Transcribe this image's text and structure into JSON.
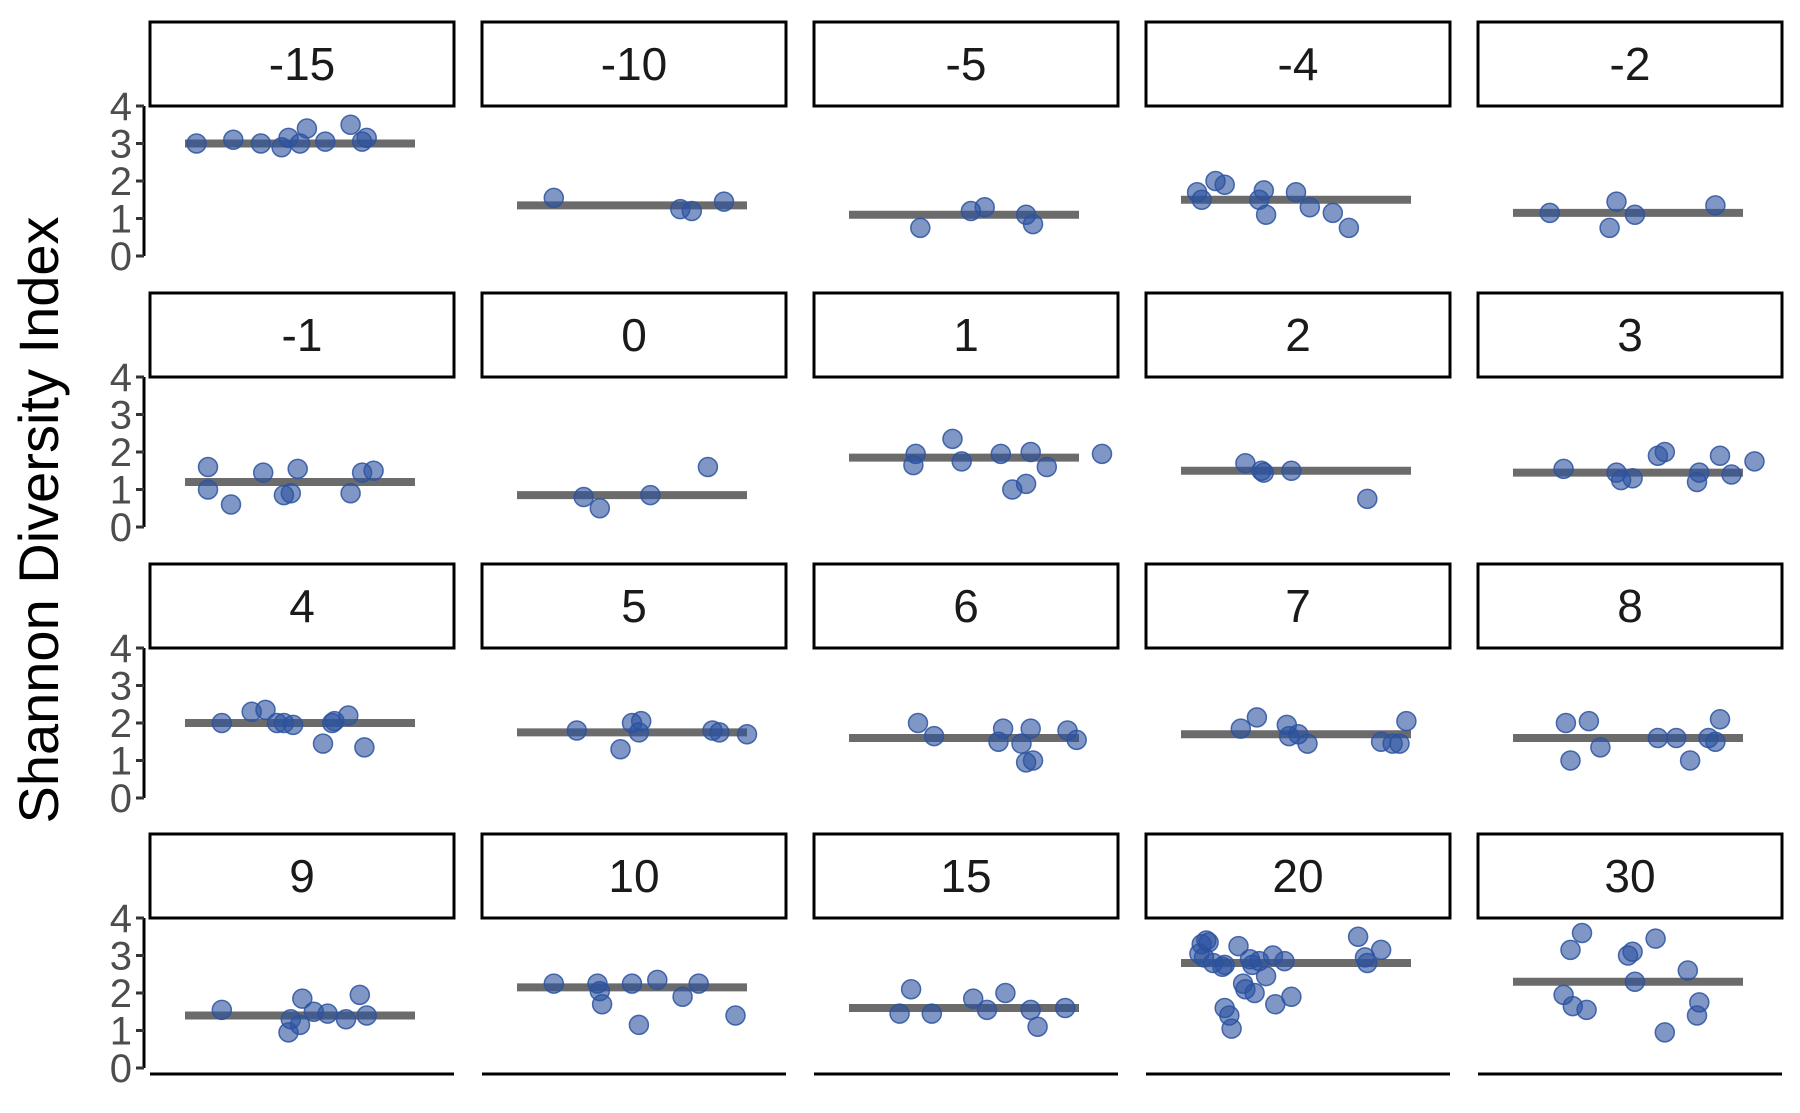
{
  "chart_data": {
    "type": "scatter",
    "ylabel": "Shannon Diversity Index",
    "xlabel": "",
    "title": "",
    "ylim": [
      0,
      4
    ],
    "yticks": [
      0,
      1,
      2,
      3,
      4
    ],
    "colors": {
      "point": "#2c52a0",
      "mean_line": "#6b6b6b",
      "border": "#000000"
    },
    "facets": [
      {
        "label": "-15",
        "mean": 3.0,
        "points": [
          [
            0.05,
            3.0
          ],
          [
            0.21,
            3.1
          ],
          [
            0.33,
            3.0
          ],
          [
            0.42,
            2.9
          ],
          [
            0.45,
            3.15
          ],
          [
            0.5,
            3.0
          ],
          [
            0.53,
            3.4
          ],
          [
            0.61,
            3.05
          ],
          [
            0.72,
            3.5
          ],
          [
            0.77,
            3.05
          ],
          [
            0.79,
            3.15
          ]
        ]
      },
      {
        "label": "-10",
        "mean": 1.35,
        "points": [
          [
            0.16,
            1.55
          ],
          [
            0.71,
            1.25
          ],
          [
            0.76,
            1.2
          ],
          [
            0.9,
            1.45
          ]
        ]
      },
      {
        "label": "-5",
        "mean": 1.1,
        "points": [
          [
            0.31,
            0.75
          ],
          [
            0.53,
            1.2
          ],
          [
            0.59,
            1.3
          ],
          [
            0.77,
            1.1
          ],
          [
            0.8,
            0.85
          ]
        ]
      },
      {
        "label": "-4",
        "mean": 1.5,
        "points": [
          [
            0.07,
            1.7
          ],
          [
            0.09,
            1.5
          ],
          [
            0.15,
            2.0
          ],
          [
            0.19,
            1.9
          ],
          [
            0.34,
            1.5
          ],
          [
            0.36,
            1.75
          ],
          [
            0.37,
            1.1
          ],
          [
            0.5,
            1.7
          ],
          [
            0.56,
            1.3
          ],
          [
            0.66,
            1.15
          ],
          [
            0.73,
            0.75
          ]
        ]
      },
      {
        "label": "-2",
        "mean": 1.15,
        "points": [
          [
            0.16,
            1.15
          ],
          [
            0.42,
            0.75
          ],
          [
            0.45,
            1.45
          ],
          [
            0.53,
            1.1
          ],
          [
            0.88,
            1.35
          ]
        ]
      },
      {
        "label": "-1",
        "mean": 1.2,
        "points": [
          [
            0.1,
            1.6
          ],
          [
            0.1,
            1.0
          ],
          [
            0.2,
            0.6
          ],
          [
            0.34,
            1.45
          ],
          [
            0.43,
            0.85
          ],
          [
            0.46,
            0.9
          ],
          [
            0.49,
            1.55
          ],
          [
            0.72,
            0.9
          ],
          [
            0.77,
            1.45
          ],
          [
            0.82,
            1.5
          ]
        ]
      },
      {
        "label": "0",
        "mean": 0.85,
        "points": [
          [
            0.29,
            0.8
          ],
          [
            0.36,
            0.5
          ],
          [
            0.58,
            0.85
          ],
          [
            0.83,
            1.6
          ]
        ]
      },
      {
        "label": "1",
        "mean": 1.85,
        "points": [
          [
            0.28,
            1.65
          ],
          [
            0.29,
            1.95
          ],
          [
            0.45,
            2.35
          ],
          [
            0.49,
            1.75
          ],
          [
            0.66,
            1.95
          ],
          [
            0.71,
            1.0
          ],
          [
            0.77,
            1.15
          ],
          [
            0.79,
            2.0
          ],
          [
            0.86,
            1.6
          ],
          [
            1.1,
            1.95
          ]
        ]
      },
      {
        "label": "2",
        "mean": 1.5,
        "points": [
          [
            0.28,
            1.7
          ],
          [
            0.35,
            1.5
          ],
          [
            0.36,
            1.45
          ],
          [
            0.48,
            1.5
          ],
          [
            0.81,
            0.75
          ]
        ]
      },
      {
        "label": "3",
        "mean": 1.45,
        "points": [
          [
            0.22,
            1.55
          ],
          [
            0.45,
            1.45
          ],
          [
            0.47,
            1.25
          ],
          [
            0.52,
            1.3
          ],
          [
            0.63,
            1.9
          ],
          [
            0.66,
            2.0
          ],
          [
            0.8,
            1.2
          ],
          [
            0.81,
            1.45
          ],
          [
            0.9,
            1.9
          ],
          [
            0.95,
            1.4
          ],
          [
            1.05,
            1.75
          ]
        ]
      },
      {
        "label": "4",
        "mean": 2.0,
        "points": [
          [
            0.16,
            2.0
          ],
          [
            0.29,
            2.3
          ],
          [
            0.35,
            2.35
          ],
          [
            0.4,
            2.0
          ],
          [
            0.43,
            2.0
          ],
          [
            0.47,
            1.95
          ],
          [
            0.6,
            1.45
          ],
          [
            0.64,
            2.0
          ],
          [
            0.65,
            2.05
          ],
          [
            0.71,
            2.2
          ],
          [
            0.78,
            1.35
          ]
        ]
      },
      {
        "label": "5",
        "mean": 1.75,
        "points": [
          [
            0.26,
            1.8
          ],
          [
            0.45,
            1.3
          ],
          [
            0.5,
            2.0
          ],
          [
            0.53,
            1.75
          ],
          [
            0.54,
            2.05
          ],
          [
            0.85,
            1.8
          ],
          [
            0.88,
            1.75
          ],
          [
            1.0,
            1.7
          ]
        ]
      },
      {
        "label": "6",
        "mean": 1.6,
        "points": [
          [
            0.3,
            2.0
          ],
          [
            0.37,
            1.65
          ],
          [
            0.65,
            1.5
          ],
          [
            0.67,
            1.85
          ],
          [
            0.75,
            1.45
          ],
          [
            0.77,
            0.95
          ],
          [
            0.79,
            1.85
          ],
          [
            0.8,
            1.0
          ],
          [
            0.95,
            1.8
          ],
          [
            0.99,
            1.55
          ]
        ]
      },
      {
        "label": "7",
        "mean": 1.7,
        "points": [
          [
            0.26,
            1.85
          ],
          [
            0.33,
            2.15
          ],
          [
            0.46,
            1.95
          ],
          [
            0.47,
            1.65
          ],
          [
            0.51,
            1.7
          ],
          [
            0.55,
            1.45
          ],
          [
            0.87,
            1.5
          ],
          [
            0.92,
            1.45
          ],
          [
            0.95,
            1.45
          ],
          [
            0.98,
            2.05
          ]
        ]
      },
      {
        "label": "8",
        "mean": 1.6,
        "points": [
          [
            0.23,
            2.0
          ],
          [
            0.25,
            1.0
          ],
          [
            0.33,
            2.05
          ],
          [
            0.38,
            1.35
          ],
          [
            0.63,
            1.6
          ],
          [
            0.71,
            1.6
          ],
          [
            0.77,
            1.0
          ],
          [
            0.85,
            1.6
          ],
          [
            0.88,
            1.5
          ],
          [
            0.9,
            2.1
          ]
        ]
      },
      {
        "label": "9",
        "mean": 1.4,
        "points": [
          [
            0.16,
            1.55
          ],
          [
            0.45,
            0.95
          ],
          [
            0.46,
            1.3
          ],
          [
            0.5,
            1.15
          ],
          [
            0.51,
            1.85
          ],
          [
            0.56,
            1.5
          ],
          [
            0.62,
            1.45
          ],
          [
            0.7,
            1.3
          ],
          [
            0.76,
            1.95
          ],
          [
            0.79,
            1.4
          ]
        ]
      },
      {
        "label": "10",
        "mean": 2.15,
        "points": [
          [
            0.16,
            2.25
          ],
          [
            0.35,
            2.25
          ],
          [
            0.36,
            2.05
          ],
          [
            0.37,
            1.7
          ],
          [
            0.5,
            2.25
          ],
          [
            0.53,
            1.15
          ],
          [
            0.61,
            2.35
          ],
          [
            0.72,
            1.9
          ],
          [
            0.79,
            2.25
          ],
          [
            0.95,
            1.4
          ]
        ]
      },
      {
        "label": "15",
        "mean": 1.6,
        "points": [
          [
            0.22,
            1.45
          ],
          [
            0.27,
            2.1
          ],
          [
            0.36,
            1.45
          ],
          [
            0.54,
            1.85
          ],
          [
            0.6,
            1.55
          ],
          [
            0.68,
            2.0
          ],
          [
            0.79,
            1.55
          ],
          [
            0.82,
            1.1
          ],
          [
            0.94,
            1.6
          ]
        ]
      },
      {
        "label": "20",
        "mean": 2.8,
        "points": [
          [
            0.08,
            3.05
          ],
          [
            0.09,
            3.3
          ],
          [
            0.1,
            2.95
          ],
          [
            0.11,
            3.4
          ],
          [
            0.12,
            3.35
          ],
          [
            0.14,
            2.8
          ],
          [
            0.18,
            2.7
          ],
          [
            0.19,
            2.75
          ],
          [
            0.19,
            1.6
          ],
          [
            0.21,
            1.4
          ],
          [
            0.22,
            1.05
          ],
          [
            0.25,
            3.25
          ],
          [
            0.27,
            2.25
          ],
          [
            0.28,
            2.1
          ],
          [
            0.3,
            2.9
          ],
          [
            0.31,
            2.75
          ],
          [
            0.32,
            2.0
          ],
          [
            0.34,
            2.85
          ],
          [
            0.37,
            2.45
          ],
          [
            0.4,
            3.0
          ],
          [
            0.41,
            1.7
          ],
          [
            0.45,
            2.85
          ],
          [
            0.48,
            1.9
          ],
          [
            0.77,
            3.5
          ],
          [
            0.8,
            2.95
          ],
          [
            0.81,
            2.8
          ],
          [
            0.87,
            3.15
          ]
        ]
      },
      {
        "label": "30",
        "mean": 2.3,
        "points": [
          [
            0.22,
            1.95
          ],
          [
            0.25,
            3.15
          ],
          [
            0.26,
            1.65
          ],
          [
            0.3,
            3.6
          ],
          [
            0.32,
            1.55
          ],
          [
            0.5,
            3.0
          ],
          [
            0.52,
            3.1
          ],
          [
            0.53,
            2.3
          ],
          [
            0.62,
            3.45
          ],
          [
            0.66,
            0.95
          ],
          [
            0.76,
            2.6
          ],
          [
            0.8,
            1.4
          ],
          [
            0.81,
            1.75
          ]
        ]
      }
    ]
  }
}
